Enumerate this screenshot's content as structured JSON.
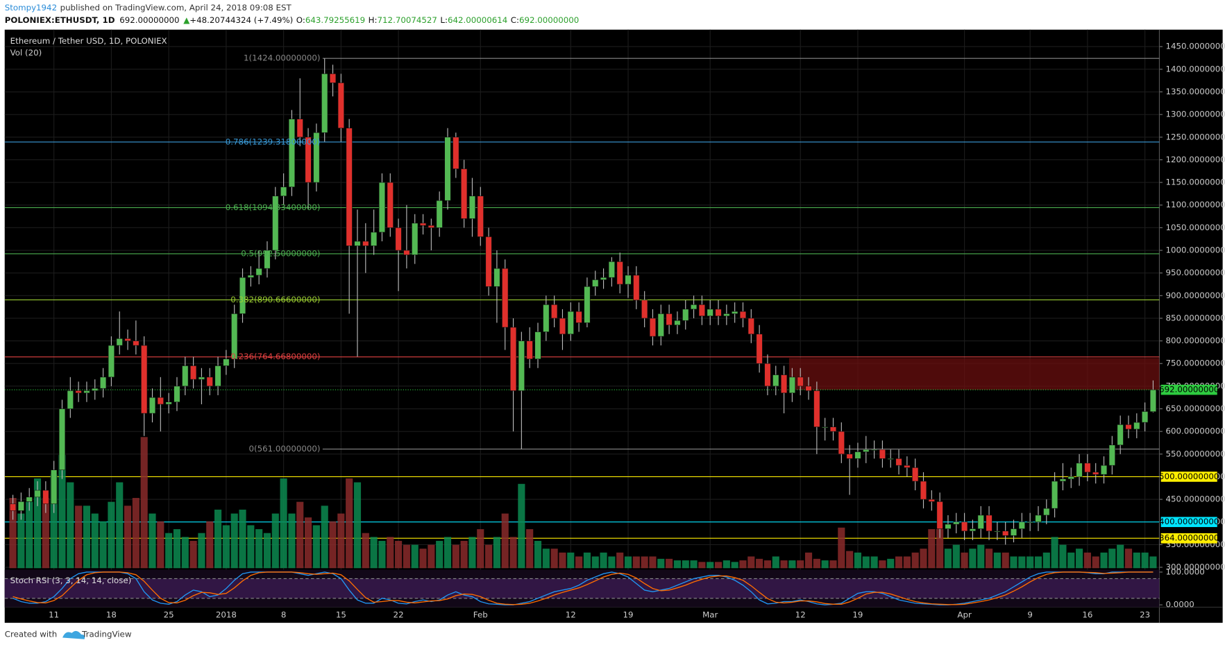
{
  "header": {
    "author": "Stompy1942",
    "published": "published on TradingView.com, April 24, 2018 09:08 EST",
    "symbol": "POLONIEX:ETHUSDT, 1D",
    "price": "692.00000000",
    "arrow": "▲",
    "change": "+48.20744324 (+7.49%)",
    "ohlc": [
      {
        "k": "O:",
        "v": "643.79255619"
      },
      {
        "k": "H:",
        "v": "712.70074527"
      },
      {
        "k": "L:",
        "v": "642.00000614"
      },
      {
        "k": "C:",
        "v": "692.00000000"
      }
    ]
  },
  "footer": {
    "created": "Created with",
    "brand": "TradingView"
  },
  "chart_data": {
    "type": "candlestick",
    "title": "Ethereum / Tether USD, 1D, POLONIEX",
    "up_color": "#53b953",
    "down_color": "#e0302c",
    "grid": true,
    "categories": [
      null,
      null,
      null,
      null,
      null,
      "11",
      null,
      null,
      null,
      null,
      null,
      null,
      "18",
      null,
      null,
      null,
      null,
      null,
      null,
      "25",
      null,
      null,
      null,
      null,
      null,
      null,
      "2018",
      null,
      null,
      null,
      null,
      null,
      null,
      "8",
      null,
      null,
      null,
      null,
      null,
      null,
      "15",
      null,
      null,
      null,
      null,
      null,
      null,
      "22",
      null,
      null,
      null,
      null,
      null,
      null,
      null,
      null,
      null,
      "Feb",
      null,
      null,
      null,
      null,
      null,
      null,
      null,
      null,
      null,
      null,
      "12",
      null,
      null,
      null,
      null,
      null,
      null,
      "19",
      null,
      null,
      null,
      null,
      null,
      null,
      null,
      null,
      null,
      "Mar",
      null,
      null,
      null,
      null,
      null,
      null,
      null,
      null,
      null,
      null,
      "12",
      null,
      null,
      null,
      null,
      null,
      null,
      "19",
      null,
      null,
      null,
      null,
      null,
      null,
      null,
      null,
      null,
      null,
      null,
      null,
      "Apr",
      null,
      null,
      null,
      null,
      null,
      null,
      null,
      "9",
      null,
      null,
      null,
      null,
      null,
      null,
      "16",
      null,
      null,
      null,
      null,
      null,
      null,
      "23",
      null
    ],
    "open": [
      440,
      425,
      445,
      455,
      470,
      440,
      515,
      650,
      690,
      685,
      690,
      695,
      720,
      790,
      805,
      800,
      790,
      640,
      675,
      660,
      665,
      700,
      745,
      715,
      720,
      700,
      745,
      760,
      860,
      940,
      945,
      960,
      1000,
      1120,
      1140,
      1290,
      1250,
      1150,
      1260,
      1390,
      1370,
      1270,
      1010,
      1020,
      1010,
      1040,
      1150,
      1050,
      1000,
      990,
      1060,
      1055,
      1050,
      1110,
      1250,
      1180,
      1070,
      1120,
      1030,
      920,
      960,
      830,
      690,
      800,
      760,
      820,
      880,
      850,
      815,
      865,
      840,
      920,
      935,
      940,
      975,
      925,
      945,
      890,
      850,
      810,
      860,
      835,
      845,
      870,
      880,
      855,
      870,
      855,
      860,
      865,
      850,
      815,
      750,
      700,
      725,
      685,
      720,
      700,
      690,
      610,
      610,
      600,
      550,
      540,
      555,
      560,
      560,
      540,
      540,
      525,
      520,
      490,
      450,
      445,
      385,
      395,
      400,
      380,
      385,
      415,
      380,
      380,
      370,
      385,
      400,
      400,
      415,
      430,
      490,
      495,
      500,
      530,
      510,
      505,
      525,
      570,
      615,
      605,
      620,
      643.79255619
    ],
    "high": [
      460,
      465,
      475,
      490,
      490,
      535,
      670,
      720,
      710,
      710,
      715,
      740,
      810,
      865,
      825,
      845,
      810,
      695,
      720,
      685,
      720,
      765,
      765,
      740,
      740,
      765,
      780,
      880,
      960,
      965,
      1000,
      1020,
      1140,
      1170,
      1310,
      1380,
      1270,
      1280,
      1424,
      1410,
      1390,
      1290,
      1090,
      1060,
      1090,
      1170,
      1170,
      1070,
      1100,
      1080,
      1080,
      1070,
      1130,
      1270,
      1260,
      1200,
      1160,
      1140,
      1050,
      1000,
      980,
      850,
      820,
      830,
      840,
      900,
      900,
      870,
      885,
      885,
      940,
      955,
      960,
      985,
      995,
      965,
      965,
      910,
      870,
      880,
      880,
      865,
      890,
      900,
      900,
      890,
      890,
      880,
      885,
      885,
      870,
      835,
      770,
      745,
      745,
      740,
      740,
      720,
      710,
      630,
      630,
      620,
      570,
      575,
      590,
      580,
      580,
      560,
      560,
      545,
      540,
      510,
      470,
      465,
      415,
      420,
      420,
      405,
      435,
      435,
      400,
      400,
      405,
      420,
      420,
      435,
      450,
      510,
      530,
      520,
      550,
      550,
      530,
      545,
      590,
      635,
      635,
      640,
      664,
      712.70074527
    ],
    "low": [
      405,
      405,
      425,
      435,
      420,
      420,
      495,
      630,
      665,
      665,
      670,
      675,
      700,
      770,
      780,
      770,
      590,
      620,
      600,
      640,
      645,
      680,
      695,
      660,
      680,
      680,
      725,
      740,
      840,
      920,
      925,
      940,
      980,
      1100,
      1120,
      1230,
      1090,
      1130,
      1240,
      1340,
      1240,
      860,
      765,
      950,
      990,
      1020,
      1030,
      910,
      960,
      970,
      1035,
      1000,
      1030,
      1090,
      1160,
      1050,
      1030,
      1010,
      900,
      840,
      780,
      600,
      561,
      740,
      740,
      800,
      830,
      780,
      800,
      820,
      830,
      900,
      915,
      920,
      905,
      895,
      870,
      830,
      790,
      790,
      815,
      815,
      825,
      850,
      835,
      835,
      835,
      835,
      840,
      830,
      795,
      730,
      680,
      680,
      640,
      665,
      680,
      670,
      550,
      580,
      580,
      530,
      460,
      520,
      530,
      540,
      520,
      520,
      505,
      500,
      470,
      430,
      425,
      365,
      365,
      375,
      360,
      360,
      365,
      360,
      360,
      350,
      355,
      365,
      380,
      380,
      395,
      410,
      470,
      475,
      480,
      490,
      485,
      485,
      505,
      550,
      585,
      585,
      600,
      642.00000614
    ],
    "close": [
      425,
      445,
      455,
      470,
      440,
      515,
      650,
      690,
      685,
      690,
      695,
      720,
      790,
      805,
      800,
      790,
      640,
      675,
      660,
      665,
      700,
      745,
      715,
      720,
      700,
      745,
      760,
      860,
      940,
      945,
      960,
      1000,
      1120,
      1140,
      1290,
      1250,
      1150,
      1260,
      1390,
      1370,
      1270,
      1010,
      1020,
      1010,
      1040,
      1150,
      1050,
      1000,
      990,
      1060,
      1055,
      1050,
      1110,
      1250,
      1180,
      1070,
      1120,
      1030,
      920,
      960,
      830,
      690,
      800,
      760,
      820,
      880,
      850,
      815,
      865,
      840,
      920,
      935,
      940,
      975,
      925,
      945,
      890,
      850,
      810,
      860,
      835,
      845,
      870,
      880,
      855,
      870,
      855,
      860,
      865,
      850,
      815,
      750,
      700,
      725,
      685,
      720,
      700,
      690,
      610,
      610,
      600,
      550,
      540,
      555,
      560,
      560,
      540,
      540,
      525,
      520,
      490,
      450,
      445,
      385,
      395,
      400,
      380,
      385,
      415,
      380,
      380,
      370,
      385,
      400,
      400,
      415,
      430,
      490,
      495,
      500,
      530,
      510,
      505,
      525,
      570,
      615,
      605,
      620,
      644,
      692
    ],
    "ylim": [
      298,
      1484
    ],
    "yticks": [
      {
        "value": 300,
        "label": "300.00000000"
      },
      {
        "value": 350,
        "label": "350.00000000"
      },
      {
        "value": 400,
        "label": "400.00000000"
      },
      {
        "value": 450,
        "label": "450.00000000"
      },
      {
        "value": 500,
        "label": "500.00000000"
      },
      {
        "value": 550,
        "label": "550.00000000"
      },
      {
        "value": 600,
        "label": "600.00000000"
      },
      {
        "value": 650,
        "label": "650.00000000"
      },
      {
        "value": 700,
        "label": "700.00000000"
      },
      {
        "value": 750,
        "label": "750.00000000"
      },
      {
        "value": 800,
        "label": "800.00000000"
      },
      {
        "value": 850,
        "label": "850.00000000"
      },
      {
        "value": 900,
        "label": "900.00000000"
      },
      {
        "value": 950,
        "label": "950.00000000"
      },
      {
        "value": 1000,
        "label": "1000.00000000"
      },
      {
        "value": 1050,
        "label": "1050.00000000"
      },
      {
        "value": 1100,
        "label": "1100.00000000"
      },
      {
        "value": 1150,
        "label": "1150.00000000"
      },
      {
        "value": 1200,
        "label": "1200.00000000"
      },
      {
        "value": 1250,
        "label": "1250.00000000"
      },
      {
        "value": 1300,
        "label": "1300.00000000"
      },
      {
        "value": 1350,
        "label": "1350.00000000"
      },
      {
        "value": 1400,
        "label": "1400.00000000"
      },
      {
        "value": 1450,
        "label": "1450.00000000"
      }
    ],
    "fib": [
      {
        "label": "1(1424.00000000)",
        "value": 1424,
        "color": "#888888"
      },
      {
        "label": "0.786(1239.31800000)",
        "value": 1239.318,
        "color": "#3a9bd9"
      },
      {
        "label": "0.618(1094.33400000)",
        "value": 1094.334,
        "color": "#4caf50"
      },
      {
        "label": "0.5(992.50000000)",
        "value": 992.5,
        "color": "#4caf50"
      },
      {
        "label": "0.382(890.66600000)",
        "value": 890.666,
        "color": "#9acd32"
      },
      {
        "label": "0.236(764.66800000)",
        "value": 764.668,
        "color": "#e04040"
      },
      {
        "label": "0(561.00000000)",
        "value": 561,
        "color": "#888888"
      }
    ],
    "levels": [
      {
        "value": 500,
        "label": "500.00000000",
        "color": "#ffee00"
      },
      {
        "value": 400,
        "label": "400.00000000",
        "color": "#00e5ff"
      },
      {
        "value": 364,
        "label": "364.00000000",
        "color": "#ffee00"
      }
    ],
    "last_price": {
      "value": 692,
      "label": "692.00000000",
      "color": "#2ecc40"
    },
    "zone": {
      "low": 692,
      "high": 762,
      "color": "#6a0f0f"
    },
    "volume": {
      "name": "Vol (20)",
      "up_color": "#0c8a50",
      "down_color": "#8a2a2a",
      "values": [
        90,
        70,
        85,
        115,
        90,
        120,
        145,
        110,
        80,
        80,
        70,
        60,
        85,
        110,
        80,
        90,
        168,
        70,
        60,
        45,
        50,
        40,
        35,
        45,
        60,
        75,
        55,
        70,
        75,
        55,
        50,
        45,
        70,
        115,
        70,
        85,
        65,
        55,
        80,
        60,
        70,
        115,
        110,
        45,
        40,
        35,
        40,
        35,
        30,
        30,
        25,
        30,
        35,
        40,
        30,
        35,
        40,
        50,
        30,
        40,
        70,
        40,
        108,
        50,
        35,
        25,
        25,
        20,
        20,
        15,
        20,
        15,
        20,
        15,
        20,
        15,
        15,
        15,
        15,
        12,
        12,
        10,
        10,
        10,
        8,
        8,
        8,
        10,
        8,
        10,
        15,
        12,
        10,
        15,
        10,
        10,
        10,
        20,
        12,
        10,
        10,
        52,
        22,
        20,
        15,
        15,
        10,
        12,
        15,
        15,
        20,
        25,
        50,
        50,
        25,
        30,
        20,
        25,
        30,
        25,
        20,
        20,
        15,
        15,
        15,
        15,
        20,
        40,
        30,
        20,
        25,
        20,
        15,
        20,
        25,
        30,
        25,
        20,
        20,
        15
      ]
    },
    "stoch": {
      "name": "Stoch RSI (3, 3, 14, 14, close)",
      "k_color": "#2196f3",
      "d_color": "#ff6d00",
      "bands": [
        80,
        20
      ],
      "k": [
        20,
        10,
        5,
        5,
        10,
        25,
        50,
        80,
        95,
        100,
        100,
        100,
        100,
        100,
        95,
        80,
        40,
        15,
        5,
        2,
        10,
        30,
        45,
        40,
        25,
        30,
        50,
        75,
        95,
        100,
        100,
        100,
        100,
        100,
        100,
        95,
        90,
        95,
        100,
        95,
        80,
        45,
        15,
        5,
        5,
        20,
        15,
        5,
        3,
        10,
        15,
        10,
        15,
        30,
        40,
        30,
        25,
        10,
        3,
        2,
        0,
        0,
        5,
        10,
        20,
        30,
        40,
        45,
        50,
        60,
        75,
        85,
        95,
        100,
        95,
        85,
        65,
        45,
        40,
        45,
        50,
        60,
        70,
        80,
        85,
        90,
        90,
        85,
        75,
        60,
        40,
        15,
        3,
        5,
        10,
        10,
        15,
        10,
        3,
        0,
        2,
        5,
        20,
        35,
        40,
        40,
        35,
        25,
        15,
        10,
        5,
        3,
        2,
        0,
        0,
        2,
        5,
        10,
        15,
        20,
        30,
        40,
        55,
        70,
        85,
        95,
        100,
        100,
        100,
        100,
        100,
        98,
        95,
        95,
        100,
        100,
        100,
        100,
        100,
        100
      ],
      "d": [
        25,
        18,
        12,
        7,
        6,
        13,
        28,
        52,
        75,
        92,
        98,
        100,
        100,
        100,
        98,
        92,
        72,
        45,
        20,
        7,
        6,
        14,
        28,
        38,
        37,
        32,
        35,
        52,
        73,
        90,
        98,
        100,
        100,
        100,
        100,
        98,
        95,
        93,
        95,
        97,
        92,
        73,
        47,
        22,
        8,
        10,
        13,
        13,
        8,
        6,
        9,
        12,
        13,
        18,
        28,
        33,
        32,
        25,
        14,
        5,
        2,
        1,
        2,
        5,
        12,
        20,
        30,
        38,
        45,
        52,
        62,
        73,
        85,
        93,
        97,
        93,
        82,
        65,
        50,
        43,
        45,
        52,
        60,
        70,
        78,
        85,
        88,
        88,
        83,
        75,
        58,
        38,
        19,
        8,
        6,
        8,
        12,
        12,
        9,
        4,
        2,
        2,
        9,
        20,
        33,
        38,
        38,
        33,
        25,
        17,
        10,
        6,
        3,
        2,
        1,
        1,
        2,
        6,
        10,
        15,
        22,
        30,
        42,
        55,
        70,
        83,
        93,
        98,
        100,
        100,
        100,
        99,
        98,
        96,
        97,
        98,
        100,
        100,
        100,
        100
      ]
    },
    "y2lim": [
      0,
      100
    ],
    "y2ticks": [
      {
        "value": 100,
        "label": "100.0000"
      },
      {
        "value": 0,
        "label": "0.0000"
      }
    ]
  }
}
